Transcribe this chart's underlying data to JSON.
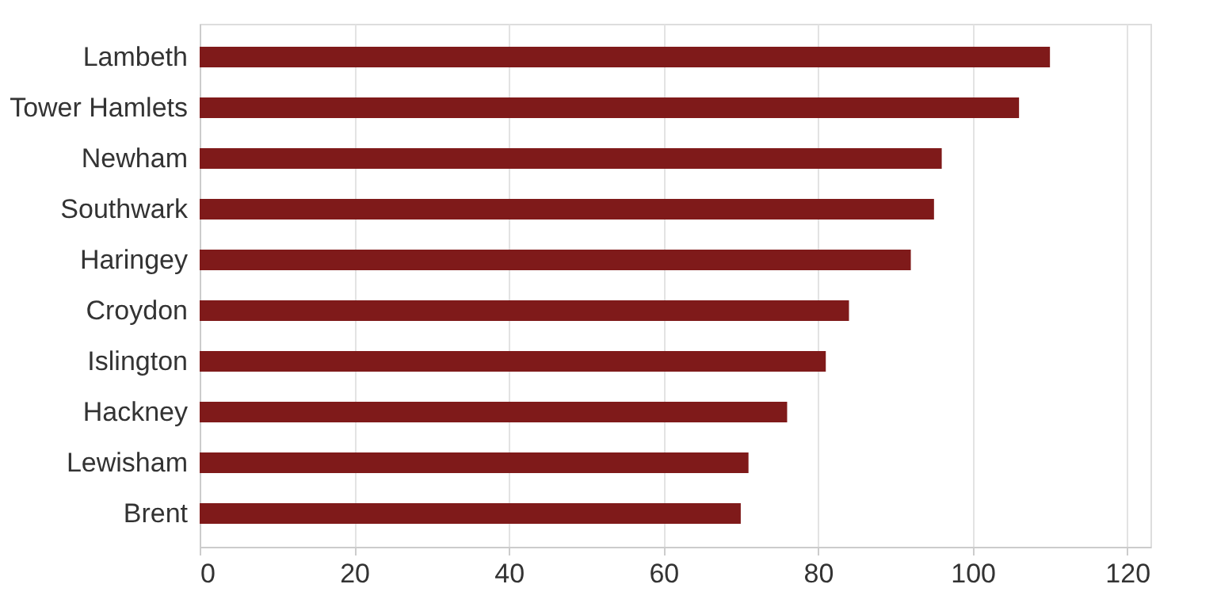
{
  "chart_data": {
    "type": "bar",
    "orientation": "horizontal",
    "categories": [
      "Lambeth",
      "Tower Hamlets",
      "Newham",
      "Southwark",
      "Haringey",
      "Croydon",
      "Islington",
      "Hackney",
      "Lewisham",
      "Brent"
    ],
    "values": [
      110,
      106,
      96,
      95,
      92,
      84,
      81,
      76,
      71,
      70
    ],
    "color": "#7f1a1a",
    "xlim": [
      0,
      123
    ],
    "xticks": [
      0,
      20,
      40,
      60,
      80,
      100,
      120
    ],
    "grid": "x"
  }
}
